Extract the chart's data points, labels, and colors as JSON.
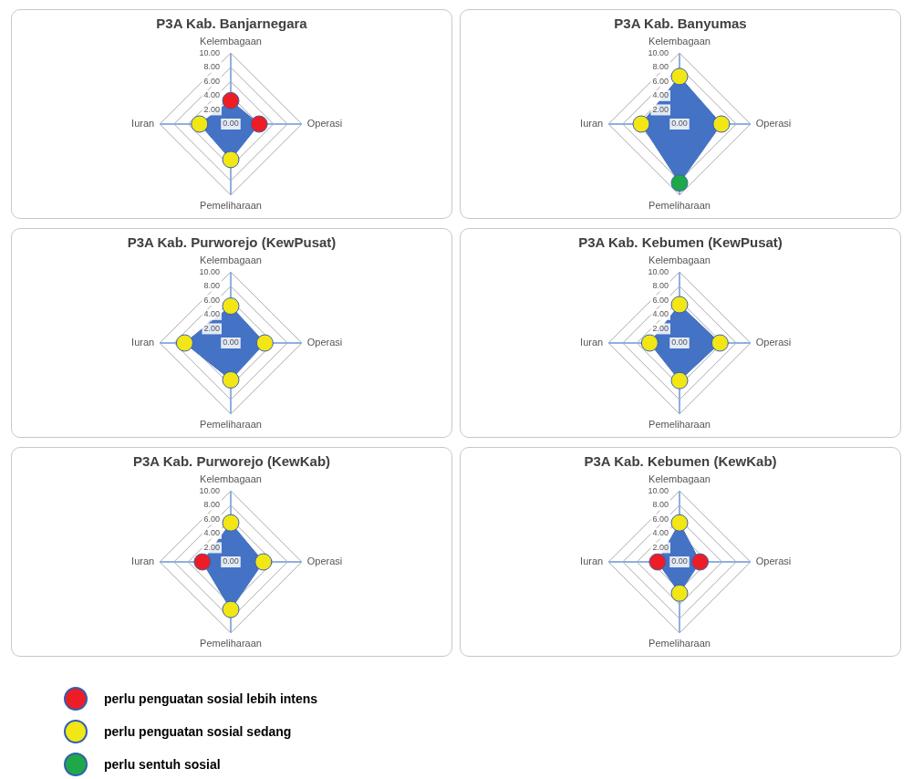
{
  "chart_data": [
    {
      "type": "radar",
      "title": "P3A Kab. Banjarnegara",
      "categories": [
        "Kelembagaan",
        "Operasi",
        "Pemeliharaan",
        "Iuran"
      ],
      "ylim": [
        0,
        10
      ],
      "yticks": [
        {
          "value": 0,
          "label": "0.00"
        },
        {
          "value": 2,
          "label": "2.00"
        },
        {
          "value": 4,
          "label": "4.00"
        },
        {
          "value": 6,
          "label": "6.00"
        },
        {
          "value": 8,
          "label": "8.00"
        },
        {
          "value": 10,
          "label": "10.00"
        }
      ],
      "grid": true,
      "marker": "circle",
      "series": [
        {
          "color": "#4472c4",
          "values": [
            3.3,
            4.0,
            5.0,
            4.4
          ],
          "colors": [
            "#ee1c25",
            "#ee1c25",
            "#f2e614",
            "#f2e614"
          ]
        }
      ]
    },
    {
      "type": "radar",
      "title": "P3A Kab. Banyumas",
      "categories": [
        "Kelembagaan",
        "Operasi",
        "Pemeliharaan",
        "Iuran"
      ],
      "ylim": [
        0,
        10
      ],
      "yticks": [
        {
          "value": 0,
          "label": "0.00"
        },
        {
          "value": 2,
          "label": "2.00"
        },
        {
          "value": 4,
          "label": "4.00"
        },
        {
          "value": 6,
          "label": "6.00"
        },
        {
          "value": 8,
          "label": "8.00"
        },
        {
          "value": 10,
          "label": "10.00"
        }
      ],
      "grid": true,
      "marker": "circle",
      "series": [
        {
          "color": "#4472c4",
          "values": [
            6.7,
            5.9,
            8.3,
            5.4
          ],
          "colors": [
            "#f2e614",
            "#f2e614",
            "#1ea84a",
            "#f2e614"
          ]
        }
      ]
    },
    {
      "type": "radar",
      "title": "P3A Kab. Purworejo (KewPusat)",
      "categories": [
        "Kelembagaan",
        "Operasi",
        "Pemeliharaan",
        "Iuran"
      ],
      "ylim": [
        0,
        10
      ],
      "yticks": [
        {
          "value": 0,
          "label": "0.00"
        },
        {
          "value": 2,
          "label": "2.00"
        },
        {
          "value": 4,
          "label": "4.00"
        },
        {
          "value": 6,
          "label": "6.00"
        },
        {
          "value": 8,
          "label": "8.00"
        },
        {
          "value": 10,
          "label": "10.00"
        }
      ],
      "grid": true,
      "marker": "circle",
      "series": [
        {
          "color": "#4472c4",
          "values": [
            5.2,
            4.8,
            5.2,
            6.5
          ],
          "colors": [
            "#f2e614",
            "#f2e614",
            "#f2e614",
            "#f2e614"
          ]
        }
      ]
    },
    {
      "type": "radar",
      "title": "P3A Kab. Kebumen (KewPusat)",
      "categories": [
        "Kelembagaan",
        "Operasi",
        "Pemeliharaan",
        "Iuran"
      ],
      "ylim": [
        0,
        10
      ],
      "yticks": [
        {
          "value": 0,
          "label": "0.00"
        },
        {
          "value": 2,
          "label": "2.00"
        },
        {
          "value": 4,
          "label": "4.00"
        },
        {
          "value": 6,
          "label": "6.00"
        },
        {
          "value": 8,
          "label": "8.00"
        },
        {
          "value": 10,
          "label": "10.00"
        }
      ],
      "grid": true,
      "marker": "circle",
      "series": [
        {
          "color": "#4472c4",
          "values": [
            5.4,
            5.7,
            5.3,
            4.2
          ],
          "colors": [
            "#f2e614",
            "#f2e614",
            "#f2e614",
            "#f2e614"
          ]
        }
      ]
    },
    {
      "type": "radar",
      "title": "P3A Kab. Purworejo (KewKab)",
      "categories": [
        "Kelembagaan",
        "Operasi",
        "Pemeliharaan",
        "Iuran"
      ],
      "ylim": [
        0,
        10
      ],
      "yticks": [
        {
          "value": 0,
          "label": "0.00"
        },
        {
          "value": 2,
          "label": "2.00"
        },
        {
          "value": 4,
          "label": "4.00"
        },
        {
          "value": 6,
          "label": "6.00"
        },
        {
          "value": 8,
          "label": "8.00"
        },
        {
          "value": 10,
          "label": "10.00"
        }
      ],
      "grid": true,
      "marker": "circle",
      "series": [
        {
          "color": "#4472c4",
          "values": [
            5.5,
            4.6,
            6.7,
            4.0
          ],
          "colors": [
            "#f2e614",
            "#f2e614",
            "#f2e614",
            "#ee1c25"
          ]
        }
      ]
    },
    {
      "type": "radar",
      "title": "P3A Kab. Kebumen (KewKab)",
      "categories": [
        "Kelembagaan",
        "Operasi",
        "Pemeliharaan",
        "Iuran"
      ],
      "ylim": [
        0,
        10
      ],
      "yticks": [
        {
          "value": 0,
          "label": "0.00"
        },
        {
          "value": 2,
          "label": "2.00"
        },
        {
          "value": 4,
          "label": "4.00"
        },
        {
          "value": 6,
          "label": "6.00"
        },
        {
          "value": 8,
          "label": "8.00"
        },
        {
          "value": 10,
          "label": "10.00"
        }
      ],
      "grid": true,
      "marker": "circle",
      "series": [
        {
          "color": "#4472c4",
          "values": [
            5.5,
            2.9,
            4.4,
            3.1
          ],
          "colors": [
            "#f2e614",
            "#ee1c25",
            "#f2e614",
            "#ee1c25"
          ]
        }
      ]
    },
    {
      "type": "other",
      "categories": [
        "perlu penguatan sosial lebih intens",
        "perlu penguatan sosial sedang",
        "perlu sentuh sosial"
      ],
      "colors": [
        "#ee1c25",
        "#f2e614",
        "#1ea84a"
      ]
    }
  ]
}
